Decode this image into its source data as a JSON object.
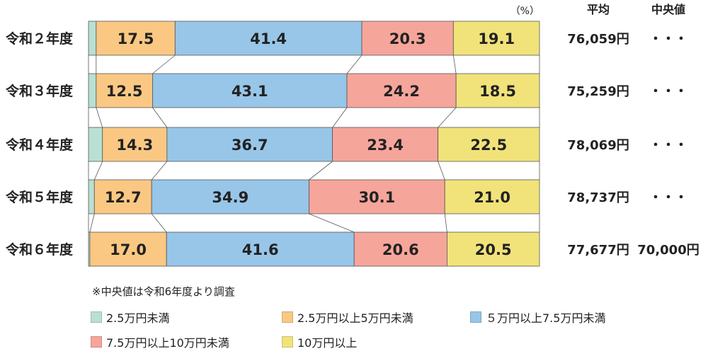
{
  "chart_data": {
    "type": "bar",
    "orientation": "horizontal",
    "stacked": true,
    "unit_label": "（%）",
    "column_headers": {
      "average": "平均",
      "median": "中央値"
    },
    "categories": [
      "令和２年度",
      "令和３年度",
      "令和４年度",
      "令和５年度",
      "令和６年度"
    ],
    "series": [
      {
        "name": "2.5万円未満",
        "color": "#b9e0d3",
        "values": [
          1.7,
          1.7,
          3.1,
          1.3,
          0.3
        ],
        "labels": [
          "",
          "",
          "",
          "",
          ""
        ]
      },
      {
        "name": "2.5万円以上5万円未満",
        "color": "#fac883",
        "values": [
          17.5,
          12.5,
          14.3,
          12.7,
          17.0
        ],
        "labels": [
          "17.5",
          "12.5",
          "14.3",
          "12.7",
          "17.0"
        ]
      },
      {
        "name": "５万円以上7.5万円未満",
        "color": "#97c6e8",
        "values": [
          41.4,
          43.1,
          36.7,
          34.9,
          41.6
        ],
        "labels": [
          "41.4",
          "43.1",
          "36.7",
          "34.9",
          "41.6"
        ]
      },
      {
        "name": "7.5万円以上10万円未満",
        "color": "#f6a59b",
        "values": [
          20.3,
          24.2,
          23.4,
          30.1,
          20.6
        ],
        "labels": [
          "20.3",
          "24.2",
          "23.4",
          "30.1",
          "20.6"
        ]
      },
      {
        "name": "10万円以上",
        "color": "#f1e37a",
        "values": [
          19.1,
          18.5,
          22.5,
          21.0,
          20.5
        ],
        "labels": [
          "19.1",
          "18.5",
          "22.5",
          "21.0",
          "20.5"
        ]
      }
    ],
    "average": [
      "76,059円",
      "75,259円",
      "78,069円",
      "78,737円",
      "77,677円"
    ],
    "median": [
      "・・・",
      "・・・",
      "・・・",
      "・・・",
      "70,000円"
    ],
    "xlim": [
      0,
      100
    ],
    "grid": false,
    "legend_position": "bottom"
  },
  "note": "※中央値は令和6年度より調査"
}
